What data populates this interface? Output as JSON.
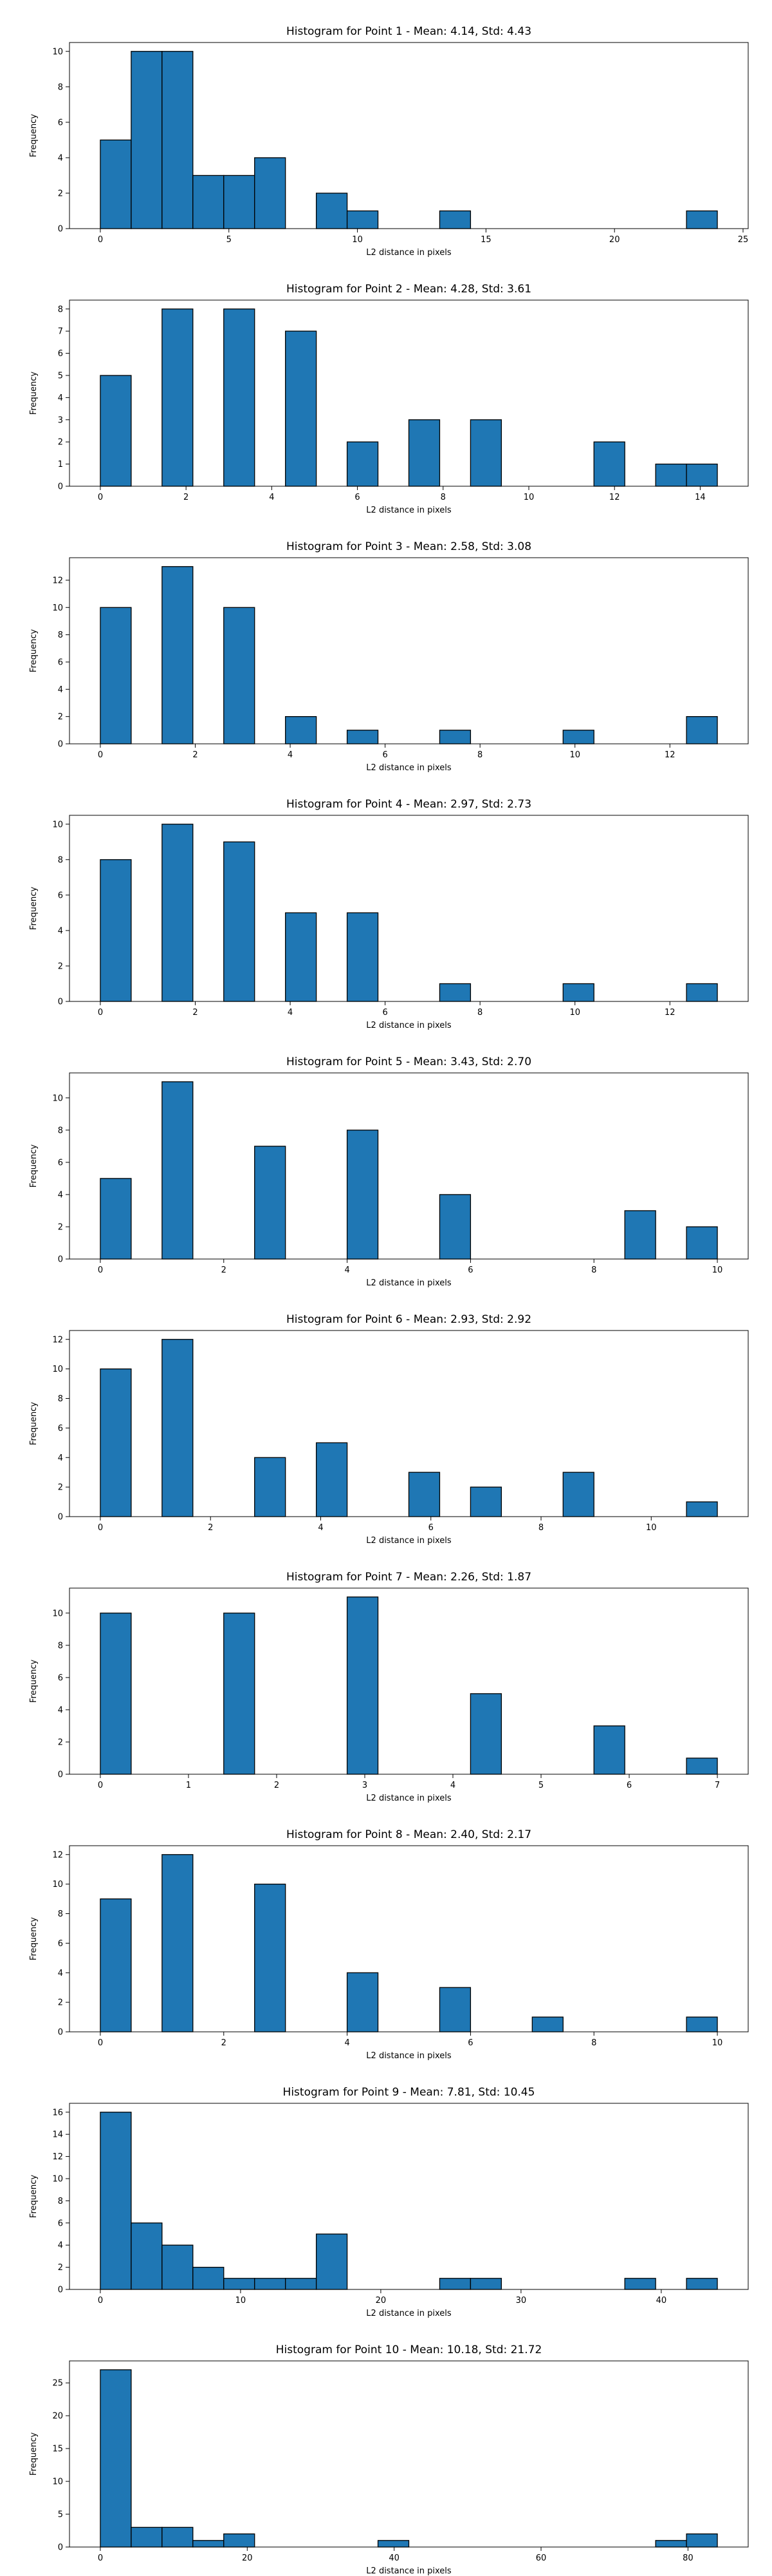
{
  "chart_data": [
    {
      "type": "bar",
      "title": "Histogram for Point 1 - Mean: 4.14, Std: 4.43",
      "xlabel": "L2 distance in pixels",
      "ylabel": "Frequency",
      "xlim": [
        -1.2,
        25.2
      ],
      "ylim": [
        0,
        10.5
      ],
      "xticks": [
        0,
        5,
        10,
        15,
        20,
        25
      ],
      "yticks": [
        0,
        2,
        4,
        6,
        8,
        10
      ],
      "bins": [
        [
          0,
          1.2,
          5
        ],
        [
          1.2,
          2.4,
          10
        ],
        [
          2.4,
          3.6,
          10
        ],
        [
          3.6,
          4.8,
          3
        ],
        [
          4.8,
          6.0,
          3
        ],
        [
          6.0,
          7.2,
          4
        ],
        [
          8.4,
          9.6,
          2
        ],
        [
          9.6,
          10.8,
          1
        ],
        [
          13.2,
          14.4,
          1
        ],
        [
          22.8,
          24.0,
          1
        ]
      ]
    },
    {
      "type": "bar",
      "title": "Histogram for Point 2 - Mean: 4.28, Std: 3.61",
      "xlabel": "L2 distance in pixels",
      "ylabel": "Frequency",
      "xlim": [
        -0.72,
        15.12
      ],
      "ylim": [
        0,
        8.4
      ],
      "xticks": [
        0,
        2,
        4,
        6,
        8,
        10,
        12,
        14
      ],
      "yticks": [
        0,
        1,
        2,
        3,
        4,
        5,
        6,
        7,
        8
      ],
      "bins": [
        [
          0,
          0.72,
          5
        ],
        [
          1.44,
          2.16,
          8
        ],
        [
          2.88,
          3.6,
          8
        ],
        [
          4.32,
          5.04,
          7
        ],
        [
          5.76,
          6.48,
          2
        ],
        [
          7.2,
          7.92,
          3
        ],
        [
          8.64,
          9.36,
          3
        ],
        [
          11.52,
          12.24,
          2
        ],
        [
          12.96,
          13.68,
          1
        ],
        [
          13.68,
          14.4,
          1
        ]
      ]
    },
    {
      "type": "bar",
      "title": "Histogram for Point 3 - Mean: 2.58, Std: 3.08",
      "xlabel": "L2 distance in pixels",
      "ylabel": "Frequency",
      "xlim": [
        -0.65,
        13.65
      ],
      "ylim": [
        0,
        13.65
      ],
      "xticks": [
        0,
        2,
        4,
        6,
        8,
        10,
        12
      ],
      "yticks": [
        0,
        2,
        4,
        6,
        8,
        10,
        12
      ],
      "bins": [
        [
          0,
          0.65,
          10
        ],
        [
          1.3,
          1.95,
          13
        ],
        [
          2.6,
          3.25,
          10
        ],
        [
          3.9,
          4.55,
          2
        ],
        [
          5.2,
          5.85,
          1
        ],
        [
          7.15,
          7.8,
          1
        ],
        [
          9.75,
          10.4,
          1
        ],
        [
          12.35,
          13.0,
          2
        ]
      ]
    },
    {
      "type": "bar",
      "title": "Histogram for Point 4 - Mean: 2.97, Std: 2.73",
      "xlabel": "L2 distance in pixels",
      "ylabel": "Frequency",
      "xlim": [
        -0.65,
        13.65
      ],
      "ylim": [
        0,
        10.5
      ],
      "xticks": [
        0,
        2,
        4,
        6,
        8,
        10,
        12
      ],
      "yticks": [
        0,
        2,
        4,
        6,
        8,
        10
      ],
      "bins": [
        [
          0,
          0.65,
          8
        ],
        [
          1.3,
          1.95,
          10
        ],
        [
          2.6,
          3.25,
          9
        ],
        [
          3.9,
          4.55,
          5
        ],
        [
          5.2,
          5.85,
          5
        ],
        [
          7.15,
          7.8,
          1
        ],
        [
          9.75,
          10.4,
          1
        ],
        [
          12.35,
          13.0,
          1
        ]
      ]
    },
    {
      "type": "bar",
      "title": "Histogram for Point 5 - Mean: 3.43, Std: 2.70",
      "xlabel": "L2 distance in pixels",
      "ylabel": "Frequency",
      "xlim": [
        -0.5,
        10.5
      ],
      "ylim": [
        0,
        11.55
      ],
      "xticks": [
        0,
        2,
        4,
        6,
        8,
        10
      ],
      "yticks": [
        0,
        2,
        4,
        6,
        8,
        10
      ],
      "bins": [
        [
          0,
          0.5,
          5
        ],
        [
          1.0,
          1.5,
          11
        ],
        [
          2.5,
          3.0,
          7
        ],
        [
          4.0,
          4.5,
          8
        ],
        [
          5.5,
          6.0,
          4
        ],
        [
          8.5,
          9.0,
          3
        ],
        [
          9.5,
          10.0,
          2
        ]
      ]
    },
    {
      "type": "bar",
      "title": "Histogram for Point 6 - Mean: 2.93, Std: 2.92",
      "xlabel": "L2 distance in pixels",
      "ylabel": "Frequency",
      "xlim": [
        -0.56,
        11.76
      ],
      "ylim": [
        0,
        12.6
      ],
      "xticks": [
        0,
        2,
        4,
        6,
        8,
        10
      ],
      "yticks": [
        0,
        2,
        4,
        6,
        8,
        10,
        12
      ],
      "bins": [
        [
          0,
          0.56,
          10
        ],
        [
          1.12,
          1.68,
          12
        ],
        [
          2.8,
          3.36,
          4
        ],
        [
          3.92,
          4.48,
          5
        ],
        [
          5.6,
          6.16,
          3
        ],
        [
          6.72,
          7.28,
          2
        ],
        [
          8.4,
          8.96,
          3
        ],
        [
          10.64,
          11.2,
          1
        ]
      ]
    },
    {
      "type": "bar",
      "title": "Histogram for Point 7 - Mean: 2.26, Std: 1.87",
      "xlabel": "L2 distance in pixels",
      "ylabel": "Frequency",
      "xlim": [
        -0.35,
        7.35
      ],
      "ylim": [
        0,
        11.55
      ],
      "xticks": [
        0,
        1,
        2,
        3,
        4,
        5,
        6,
        7
      ],
      "yticks": [
        0,
        2,
        4,
        6,
        8,
        10
      ],
      "bins": [
        [
          0,
          0.35,
          10
        ],
        [
          1.4,
          1.75,
          10
        ],
        [
          2.8,
          3.15,
          11
        ],
        [
          4.2,
          4.55,
          5
        ],
        [
          5.6,
          5.95,
          3
        ],
        [
          6.65,
          7.0,
          1
        ]
      ]
    },
    {
      "type": "bar",
      "title": "Histogram for Point 8 - Mean: 2.40, Std: 2.17",
      "xlabel": "L2 distance in pixels",
      "ylabel": "Frequency",
      "xlim": [
        -0.5,
        10.5
      ],
      "ylim": [
        0,
        12.6
      ],
      "xticks": [
        0,
        2,
        4,
        6,
        8,
        10
      ],
      "yticks": [
        0,
        2,
        4,
        6,
        8,
        10,
        12
      ],
      "bins": [
        [
          0,
          0.5,
          9
        ],
        [
          1.0,
          1.5,
          12
        ],
        [
          2.5,
          3.0,
          10
        ],
        [
          4.0,
          4.5,
          4
        ],
        [
          5.5,
          6.0,
          3
        ],
        [
          7.0,
          7.5,
          1
        ],
        [
          9.5,
          10.0,
          1
        ]
      ]
    },
    {
      "type": "bar",
      "title": "Histogram for Point 9 - Mean: 7.81, Std: 10.45",
      "xlabel": "L2 distance in pixels",
      "ylabel": "Frequency",
      "xlim": [
        -2.2,
        46.2
      ],
      "ylim": [
        0,
        16.8
      ],
      "xticks": [
        0,
        10,
        20,
        30,
        40
      ],
      "yticks": [
        0,
        2,
        4,
        6,
        8,
        10,
        12,
        14,
        16
      ],
      "bins": [
        [
          0,
          2.2,
          16
        ],
        [
          2.2,
          4.4,
          6
        ],
        [
          4.4,
          6.6,
          4
        ],
        [
          6.6,
          8.8,
          2
        ],
        [
          8.8,
          11.0,
          1
        ],
        [
          11.0,
          13.2,
          1
        ],
        [
          13.2,
          15.4,
          1
        ],
        [
          15.4,
          17.6,
          5
        ],
        [
          24.2,
          26.4,
          1
        ],
        [
          26.4,
          28.6,
          1
        ],
        [
          37.4,
          39.6,
          1
        ],
        [
          41.8,
          44.0,
          1
        ]
      ]
    },
    {
      "type": "bar",
      "title": "Histogram for Point 10 - Mean: 10.18, Std: 21.72",
      "xlabel": "L2 distance in pixels",
      "ylabel": "Frequency",
      "xlim": [
        -4.2,
        88.2
      ],
      "ylim": [
        0,
        28.35
      ],
      "xticks": [
        0,
        20,
        40,
        60,
        80
      ],
      "yticks": [
        0,
        5,
        10,
        15,
        20,
        25
      ],
      "bins": [
        [
          0,
          4.2,
          27
        ],
        [
          4.2,
          8.4,
          3
        ],
        [
          8.4,
          12.6,
          3
        ],
        [
          12.6,
          16.8,
          1
        ],
        [
          16.8,
          21.0,
          2
        ],
        [
          37.8,
          42.0,
          1
        ],
        [
          75.6,
          79.8,
          1
        ],
        [
          79.8,
          84.0,
          2
        ]
      ]
    }
  ],
  "colors": {
    "bar_fill": "#1f77b4",
    "bar_edge": "#000000",
    "axes": "#000000",
    "text": "#000000"
  }
}
